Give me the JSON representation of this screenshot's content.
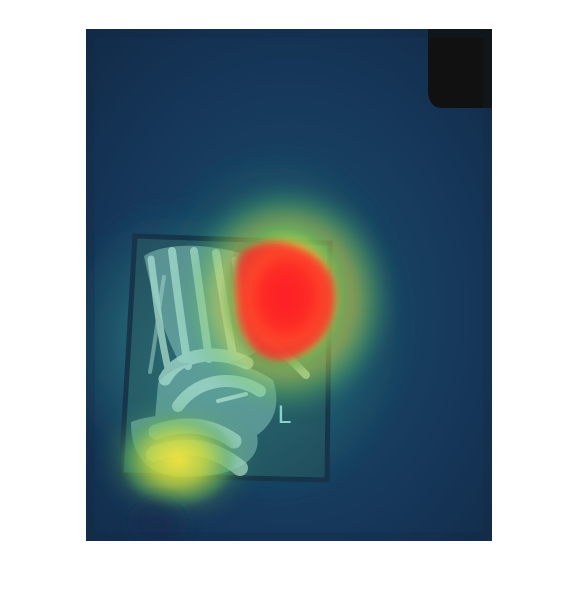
{
  "image": {
    "kind": "x-ray heatmap overlay",
    "colors": {
      "background": "#153152",
      "panel_edge": "#0f243b",
      "heat_low": "#1c5d67",
      "heat_mid": "#67c85b",
      "heat_high": "#ffef3b",
      "heat_peak": "#ff2d2d",
      "bone_tint": "#b8f0df",
      "marker": "#8ed8d3",
      "black_corner": "#111111"
    },
    "marker_label": "L"
  }
}
